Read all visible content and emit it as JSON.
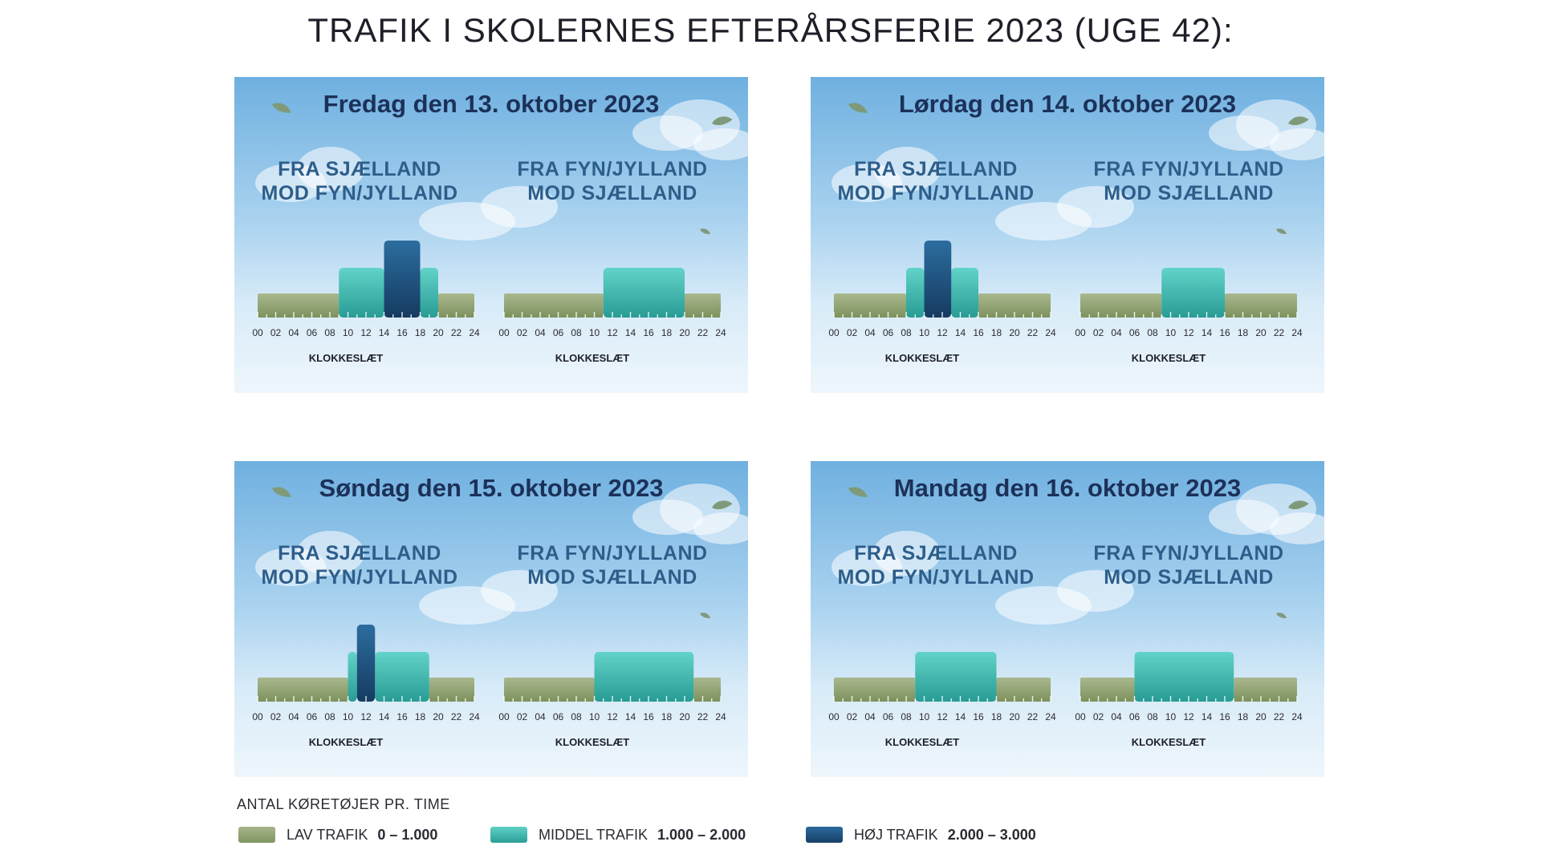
{
  "title": "TRAFIK I SKOLERNES EFTERÅRSFERIE 2023 (UGE 42):",
  "legend": {
    "heading": "ANTAL KØRETØJER PR. TIME",
    "items": [
      {
        "label": "LAV TRAFIK",
        "range": "0 – 1.000",
        "color_top": "#a6b58a",
        "color_bottom": "#7f9460"
      },
      {
        "label": "MIDDEL TRAFIK",
        "range": "1.000 – 2.000",
        "color_top": "#5fd0c5",
        "color_bottom": "#2a9e97"
      },
      {
        "label": "HØJ TRAFIK",
        "range": "2.000 – 3.000",
        "color_top": "#2a6a9c",
        "color_bottom": "#173f66"
      }
    ]
  },
  "chart_data": [
    {
      "type": "bar",
      "title": "Fredag den 13. oktober 2023",
      "charts": [
        {
          "direction": "FRA SJÆLLAND\nMOD FYN/JYLLAND",
          "xlabel": "KLOKKESLÆT",
          "ticks": [
            "00",
            "02",
            "04",
            "06",
            "08",
            "10",
            "12",
            "14",
            "16",
            "18",
            "20",
            "22",
            "24"
          ],
          "segments": [
            {
              "start": 0,
              "end": 9,
              "level": 1
            },
            {
              "start": 9,
              "end": 14,
              "level": 2
            },
            {
              "start": 14,
              "end": 18,
              "level": 3
            },
            {
              "start": 18,
              "end": 20,
              "level": 2
            },
            {
              "start": 20,
              "end": 24,
              "level": 1
            }
          ]
        },
        {
          "direction": "FRA FYN/JYLLAND\nMOD SJÆLLAND",
          "xlabel": "KLOKKESLÆT",
          "ticks": [
            "00",
            "02",
            "04",
            "06",
            "08",
            "10",
            "12",
            "14",
            "16",
            "18",
            "20",
            "22",
            "24"
          ],
          "segments": [
            {
              "start": 0,
              "end": 11,
              "level": 1
            },
            {
              "start": 11,
              "end": 20,
              "level": 2
            },
            {
              "start": 20,
              "end": 24,
              "level": 1
            }
          ]
        }
      ]
    },
    {
      "type": "bar",
      "title": "Lørdag den 14. oktober 2023",
      "charts": [
        {
          "direction": "FRA SJÆLLAND\nMOD FYN/JYLLAND",
          "xlabel": "KLOKKESLÆT",
          "ticks": [
            "00",
            "02",
            "04",
            "06",
            "08",
            "10",
            "12",
            "14",
            "16",
            "18",
            "20",
            "22",
            "24"
          ],
          "segments": [
            {
              "start": 0,
              "end": 8,
              "level": 1
            },
            {
              "start": 8,
              "end": 10,
              "level": 2
            },
            {
              "start": 10,
              "end": 13,
              "level": 3
            },
            {
              "start": 13,
              "end": 16,
              "level": 2
            },
            {
              "start": 16,
              "end": 24,
              "level": 1
            }
          ]
        },
        {
          "direction": "FRA FYN/JYLLAND\nMOD SJÆLLAND",
          "xlabel": "KLOKKESLÆT",
          "ticks": [
            "00",
            "02",
            "04",
            "06",
            "08",
            "10",
            "12",
            "14",
            "16",
            "18",
            "20",
            "22",
            "24"
          ],
          "segments": [
            {
              "start": 0,
              "end": 9,
              "level": 1
            },
            {
              "start": 9,
              "end": 16,
              "level": 2
            },
            {
              "start": 16,
              "end": 24,
              "level": 1
            }
          ]
        }
      ]
    },
    {
      "type": "bar",
      "title": "Søndag den 15. oktober 2023",
      "charts": [
        {
          "direction": "FRA SJÆLLAND\nMOD FYN/JYLLAND",
          "xlabel": "KLOKKESLÆT",
          "ticks": [
            "00",
            "02",
            "04",
            "06",
            "08",
            "10",
            "12",
            "14",
            "16",
            "18",
            "20",
            "22",
            "24"
          ],
          "segments": [
            {
              "start": 0,
              "end": 10,
              "level": 1
            },
            {
              "start": 10,
              "end": 11,
              "level": 2
            },
            {
              "start": 11,
              "end": 13,
              "level": 3
            },
            {
              "start": 13,
              "end": 19,
              "level": 2
            },
            {
              "start": 19,
              "end": 24,
              "level": 1
            }
          ]
        },
        {
          "direction": "FRA FYN/JYLLAND\nMOD SJÆLLAND",
          "xlabel": "KLOKKESLÆT",
          "ticks": [
            "00",
            "02",
            "04",
            "06",
            "08",
            "10",
            "12",
            "14",
            "16",
            "18",
            "20",
            "22",
            "24"
          ],
          "segments": [
            {
              "start": 0,
              "end": 10,
              "level": 1
            },
            {
              "start": 10,
              "end": 21,
              "level": 2
            },
            {
              "start": 21,
              "end": 24,
              "level": 1
            }
          ]
        }
      ]
    },
    {
      "type": "bar",
      "title": "Mandag den 16. oktober 2023",
      "charts": [
        {
          "direction": "FRA SJÆLLAND\nMOD FYN/JYLLAND",
          "xlabel": "KLOKKESLÆT",
          "ticks": [
            "00",
            "02",
            "04",
            "06",
            "08",
            "10",
            "12",
            "14",
            "16",
            "18",
            "20",
            "22",
            "24"
          ],
          "segments": [
            {
              "start": 0,
              "end": 9,
              "level": 1
            },
            {
              "start": 9,
              "end": 18,
              "level": 2
            },
            {
              "start": 18,
              "end": 24,
              "level": 1
            }
          ]
        },
        {
          "direction": "FRA FYN/JYLLAND\nMOD SJÆLLAND",
          "xlabel": "KLOKKESLÆT",
          "ticks": [
            "00",
            "02",
            "04",
            "06",
            "08",
            "10",
            "12",
            "14",
            "16",
            "18",
            "20",
            "22",
            "24"
          ],
          "segments": [
            {
              "start": 0,
              "end": 6,
              "level": 1
            },
            {
              "start": 6,
              "end": 17,
              "level": 2
            },
            {
              "start": 17,
              "end": 24,
              "level": 1
            }
          ]
        }
      ]
    }
  ]
}
